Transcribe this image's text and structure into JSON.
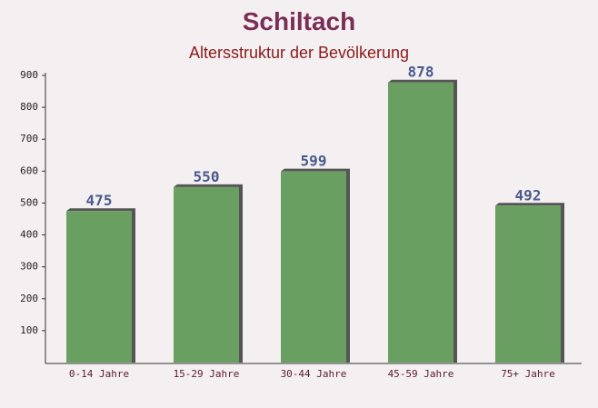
{
  "chart_data": {
    "type": "bar",
    "title": "Schiltach",
    "subtitle": "Altersstruktur der Bevölkerung",
    "categories": [
      "0-14 Jahre",
      "15-29 Jahre",
      "30-44 Jahre",
      "45-59 Jahre",
      "75+ Jahre"
    ],
    "values": [
      475,
      550,
      599,
      878,
      492
    ],
    "color": "#6a9f62",
    "ylim": [
      0,
      900
    ],
    "yticks": [
      100,
      200,
      300,
      400,
      500,
      600,
      700,
      800,
      900
    ]
  }
}
